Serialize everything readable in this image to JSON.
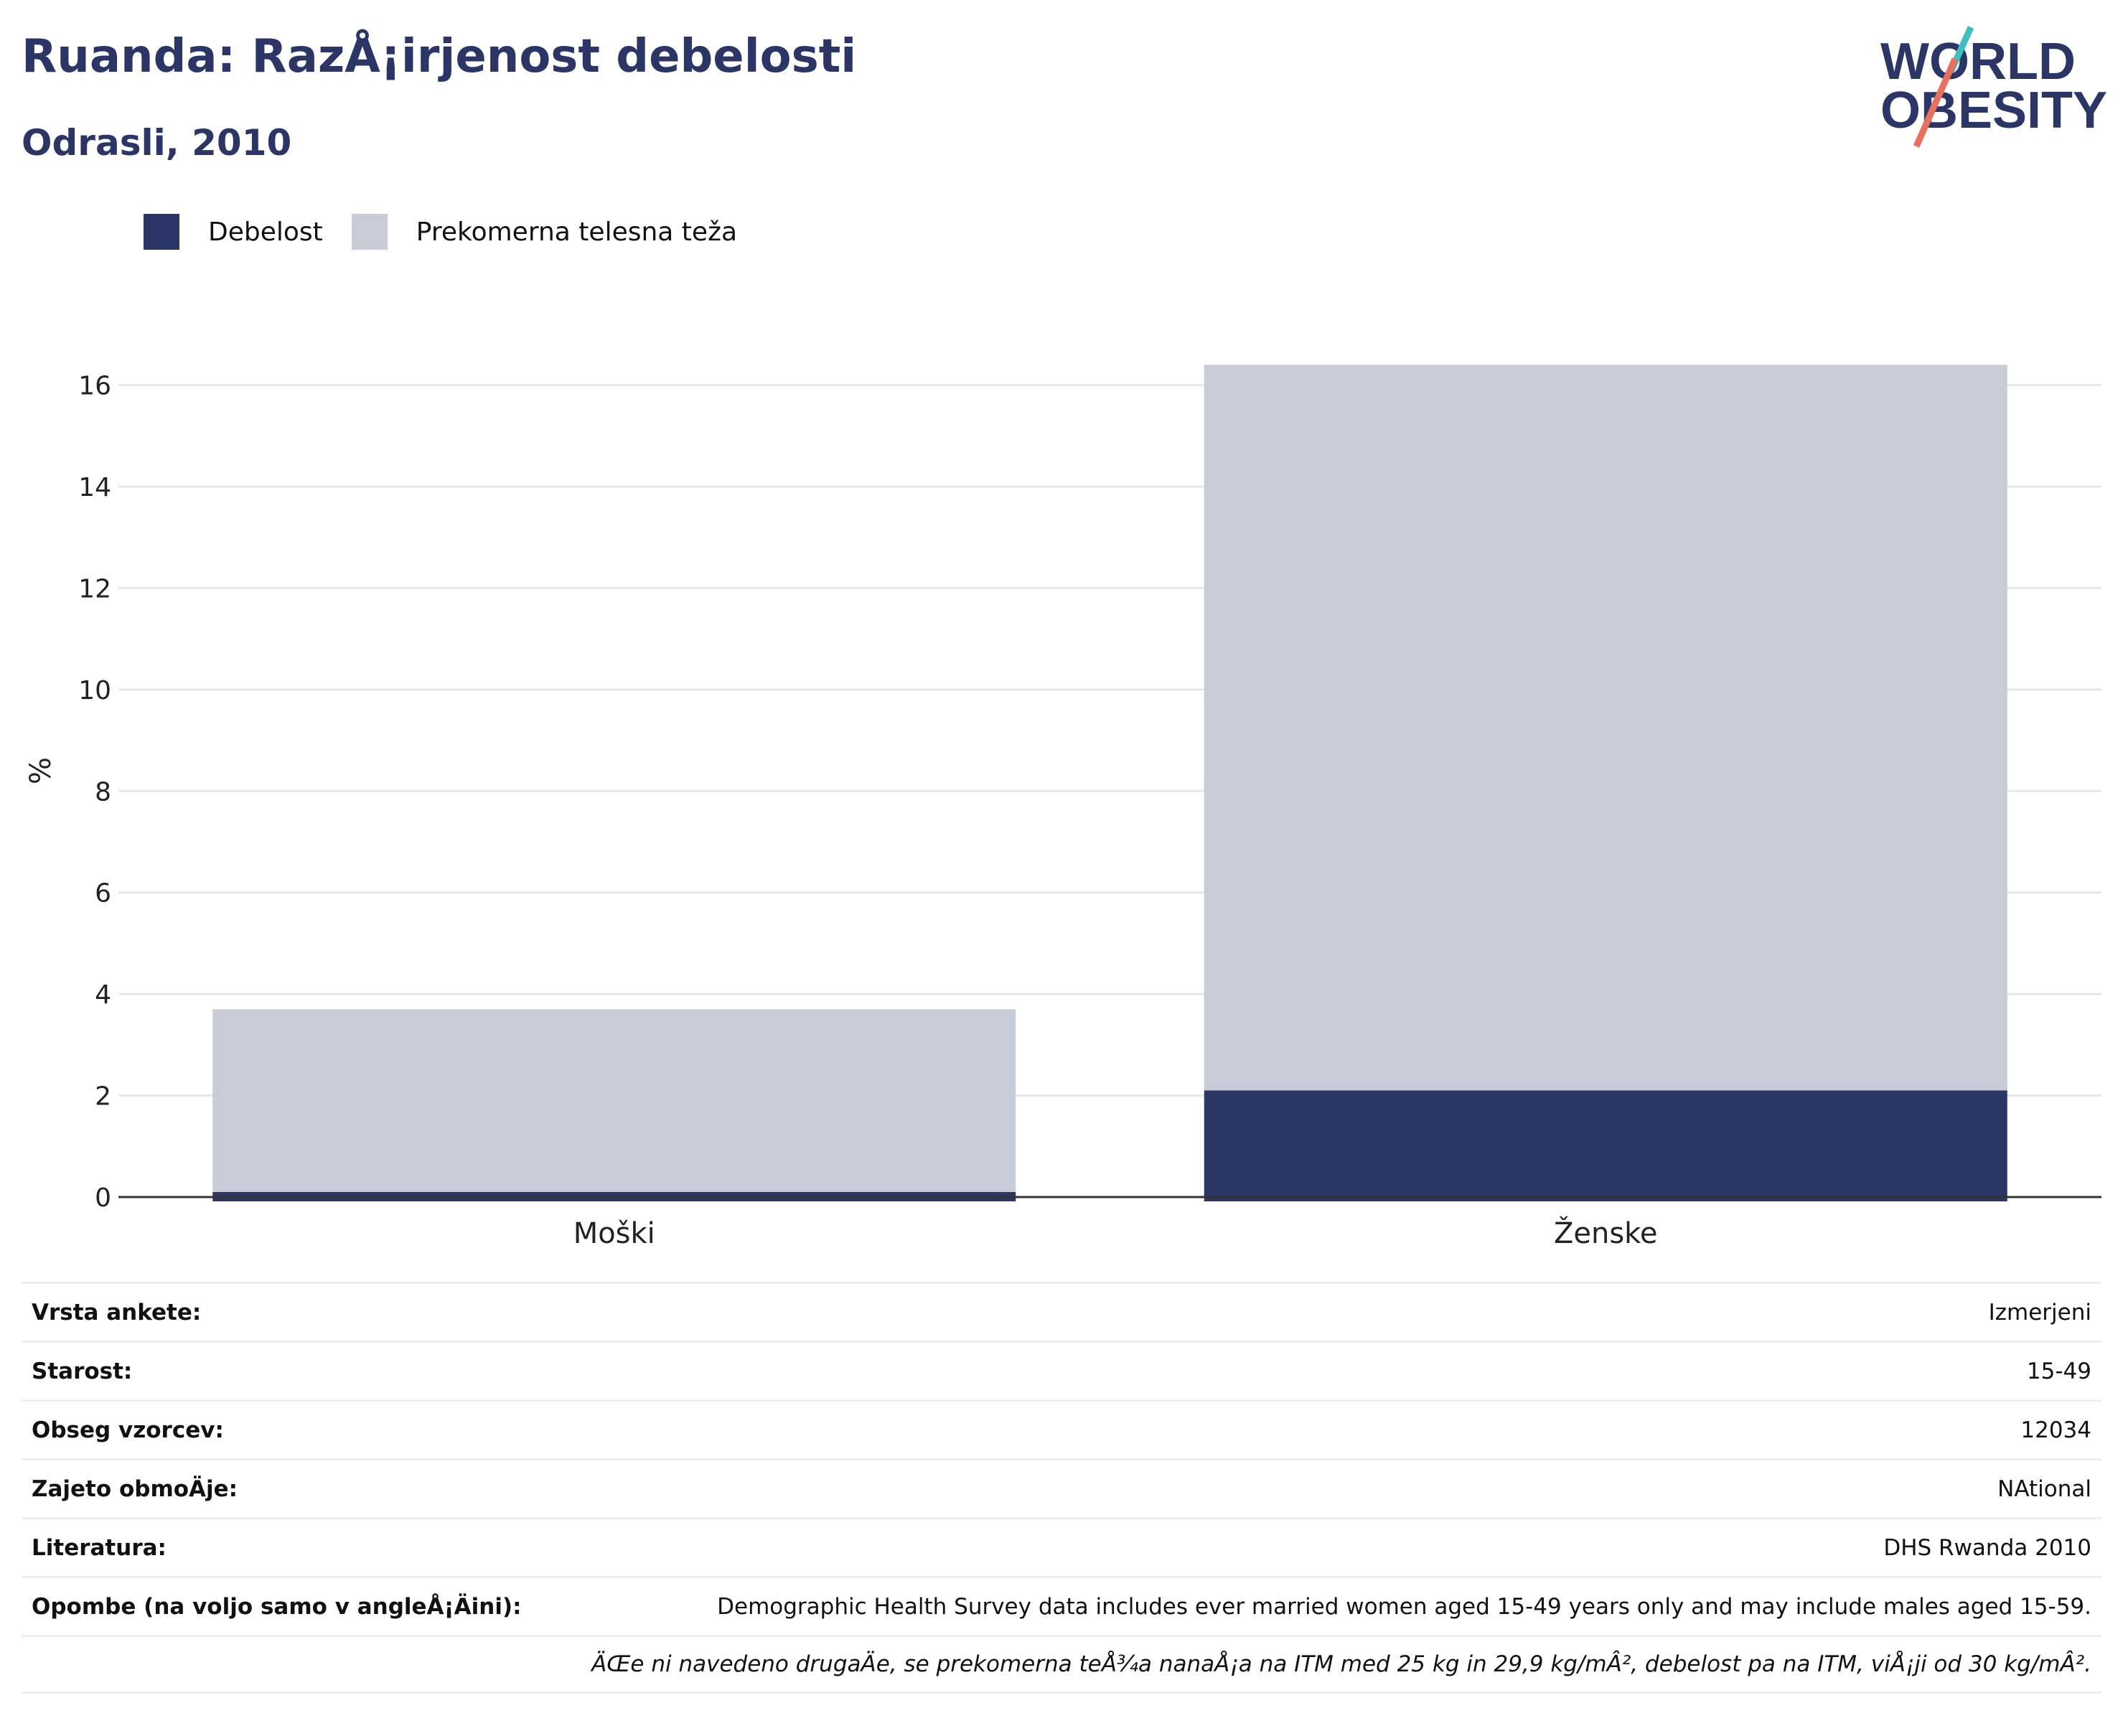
{
  "header": {
    "title": "Ruanda: RazÅ¡irjenost debelosti",
    "subtitle": "Odrasli, 2010"
  },
  "logo": {
    "line1": "WORLD",
    "line2": "OBESITY",
    "colors": [
      "#2b3566",
      "#e8705f",
      "#3fbfc0"
    ]
  },
  "legend": [
    {
      "label": "Debelost",
      "color": "#2b3566"
    },
    {
      "label": "Prekomerna telesna teža",
      "color": "#c9cbd6"
    }
  ],
  "chart_data": {
    "type": "bar",
    "stacked": true,
    "categories": [
      "Moški",
      "Ženske"
    ],
    "series": [
      {
        "name": "Debelost",
        "values": [
          0.1,
          2.1
        ],
        "color": "#2b3566"
      },
      {
        "name": "Prekomerna telesna teža",
        "values": [
          3.6,
          14.3
        ],
        "color": "#c9cbd6"
      }
    ],
    "ylabel": "%",
    "ylim": [
      0,
      16.8
    ],
    "yticks": [
      0,
      2,
      4,
      6,
      8,
      10,
      12,
      14,
      16
    ],
    "grid": true,
    "legend_position": "top-left"
  },
  "info_rows": [
    {
      "label": "Vrsta ankete:",
      "value": "Izmerjeni"
    },
    {
      "label": "Starost:",
      "value": "15-49"
    },
    {
      "label": "Obseg vzorcev:",
      "value": "12034"
    },
    {
      "label": "Zajeto obmoÄje:",
      "value": "NAtional"
    },
    {
      "label": "Literatura:",
      "value": "DHS Rwanda 2010"
    },
    {
      "label": "Opombe (na voljo samo v angleÅ¡Äini):",
      "value": "Demographic Health Survey data includes ever married women aged 15-49 years only and may include males aged 15-59."
    },
    {
      "label": "",
      "value": "ÄŒe ni navedeno drugaÄe, se prekomerna teÅ¾a nanaÅ¡a na ITM med 25 kg in 29,9 kg/mÂ², debelost pa na ITM, viÅ¡ji od 30 kg/mÂ²."
    }
  ]
}
